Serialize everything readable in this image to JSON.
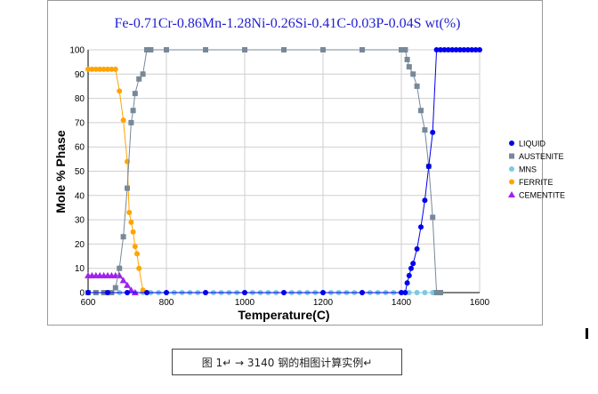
{
  "chart_data": {
    "type": "scatter",
    "title": "Fe-0.71Cr-0.86Mn-1.28Ni-0.26Si-0.41C-0.03P-0.04S wt(%)",
    "xlabel": "Temperature(C)",
    "ylabel": "Mole % Phase",
    "xlim": [
      600,
      1600
    ],
    "ylim": [
      0,
      100
    ],
    "xticks": [
      600,
      800,
      1000,
      1200,
      1400,
      1600
    ],
    "yticks": [
      0,
      10,
      20,
      30,
      40,
      50,
      60,
      70,
      80,
      90,
      100
    ],
    "grid": true,
    "legend_position": "right",
    "series": [
      {
        "name": "LIQUID",
        "color": "#0000ee",
        "marker": "circle",
        "x": [
          600,
          650,
          700,
          750,
          800,
          900,
          1000,
          1100,
          1200,
          1300,
          1400,
          1410,
          1415,
          1420,
          1425,
          1430,
          1440,
          1450,
          1460,
          1470,
          1480,
          1490,
          1500,
          1510,
          1520,
          1530,
          1540,
          1550,
          1560,
          1570,
          1580,
          1590,
          1600
        ],
        "y": [
          0,
          0,
          0,
          0,
          0,
          0,
          0,
          0,
          0,
          0,
          0,
          0,
          4,
          7,
          10,
          12,
          18,
          27,
          38,
          52,
          66,
          100,
          100,
          100,
          100,
          100,
          100,
          100,
          100,
          100,
          100,
          100,
          100
        ]
      },
      {
        "name": "AUSTENITE",
        "color": "#778899",
        "marker": "square",
        "x": [
          600,
          620,
          640,
          660,
          670,
          680,
          690,
          700,
          710,
          715,
          720,
          730,
          740,
          750,
          760,
          800,
          900,
          1000,
          1100,
          1200,
          1300,
          1400,
          1410,
          1415,
          1420,
          1430,
          1440,
          1450,
          1460,
          1470,
          1480,
          1490,
          1500
        ],
        "y": [
          0,
          0,
          0,
          0,
          2,
          10,
          23,
          43,
          70,
          75,
          82,
          88,
          90,
          100,
          100,
          100,
          100,
          100,
          100,
          100,
          100,
          100,
          100,
          96,
          93,
          90,
          85,
          75,
          67,
          52,
          31,
          0,
          0
        ]
      },
      {
        "name": "MNS",
        "color": "#7ec8e3",
        "marker": "circle",
        "x": [
          600,
          620,
          640,
          660,
          680,
          700,
          720,
          740,
          760,
          780,
          800,
          820,
          840,
          860,
          880,
          900,
          920,
          940,
          960,
          980,
          1000,
          1020,
          1040,
          1060,
          1080,
          1100,
          1120,
          1140,
          1160,
          1180,
          1200,
          1220,
          1240,
          1260,
          1280,
          1300,
          1320,
          1340,
          1360,
          1380,
          1400,
          1420,
          1440,
          1460,
          1480,
          1500
        ],
        "y": [
          0,
          0,
          0,
          0,
          0,
          0,
          0,
          0,
          0,
          0,
          0,
          0,
          0,
          0,
          0,
          0,
          0,
          0,
          0,
          0,
          0,
          0,
          0,
          0,
          0,
          0,
          0,
          0,
          0,
          0,
          0,
          0,
          0,
          0,
          0,
          0,
          0,
          0,
          0,
          0,
          0,
          0,
          0,
          0,
          0,
          0
        ]
      },
      {
        "name": "FERRITE",
        "color": "#ffa500",
        "marker": "circle",
        "x": [
          600,
          610,
          620,
          630,
          640,
          650,
          660,
          670,
          680,
          690,
          700,
          705,
          710,
          715,
          720,
          725,
          730,
          740,
          750
        ],
        "y": [
          92,
          92,
          92,
          92,
          92,
          92,
          92,
          92,
          83,
          71,
          54,
          33,
          29,
          25,
          19,
          16,
          10,
          1,
          0
        ]
      },
      {
        "name": "CEMENTITE",
        "color": "#a020f0",
        "marker": "triangle",
        "x": [
          600,
          610,
          620,
          630,
          640,
          650,
          660,
          670,
          680,
          690,
          700,
          710,
          720
        ],
        "y": [
          7,
          7,
          7,
          7,
          7,
          7,
          7,
          7,
          7,
          5,
          3,
          1,
          0
        ]
      }
    ]
  },
  "caption": {
    "text": "图 1↵  →  3140 钢的相图计算实例↵"
  }
}
